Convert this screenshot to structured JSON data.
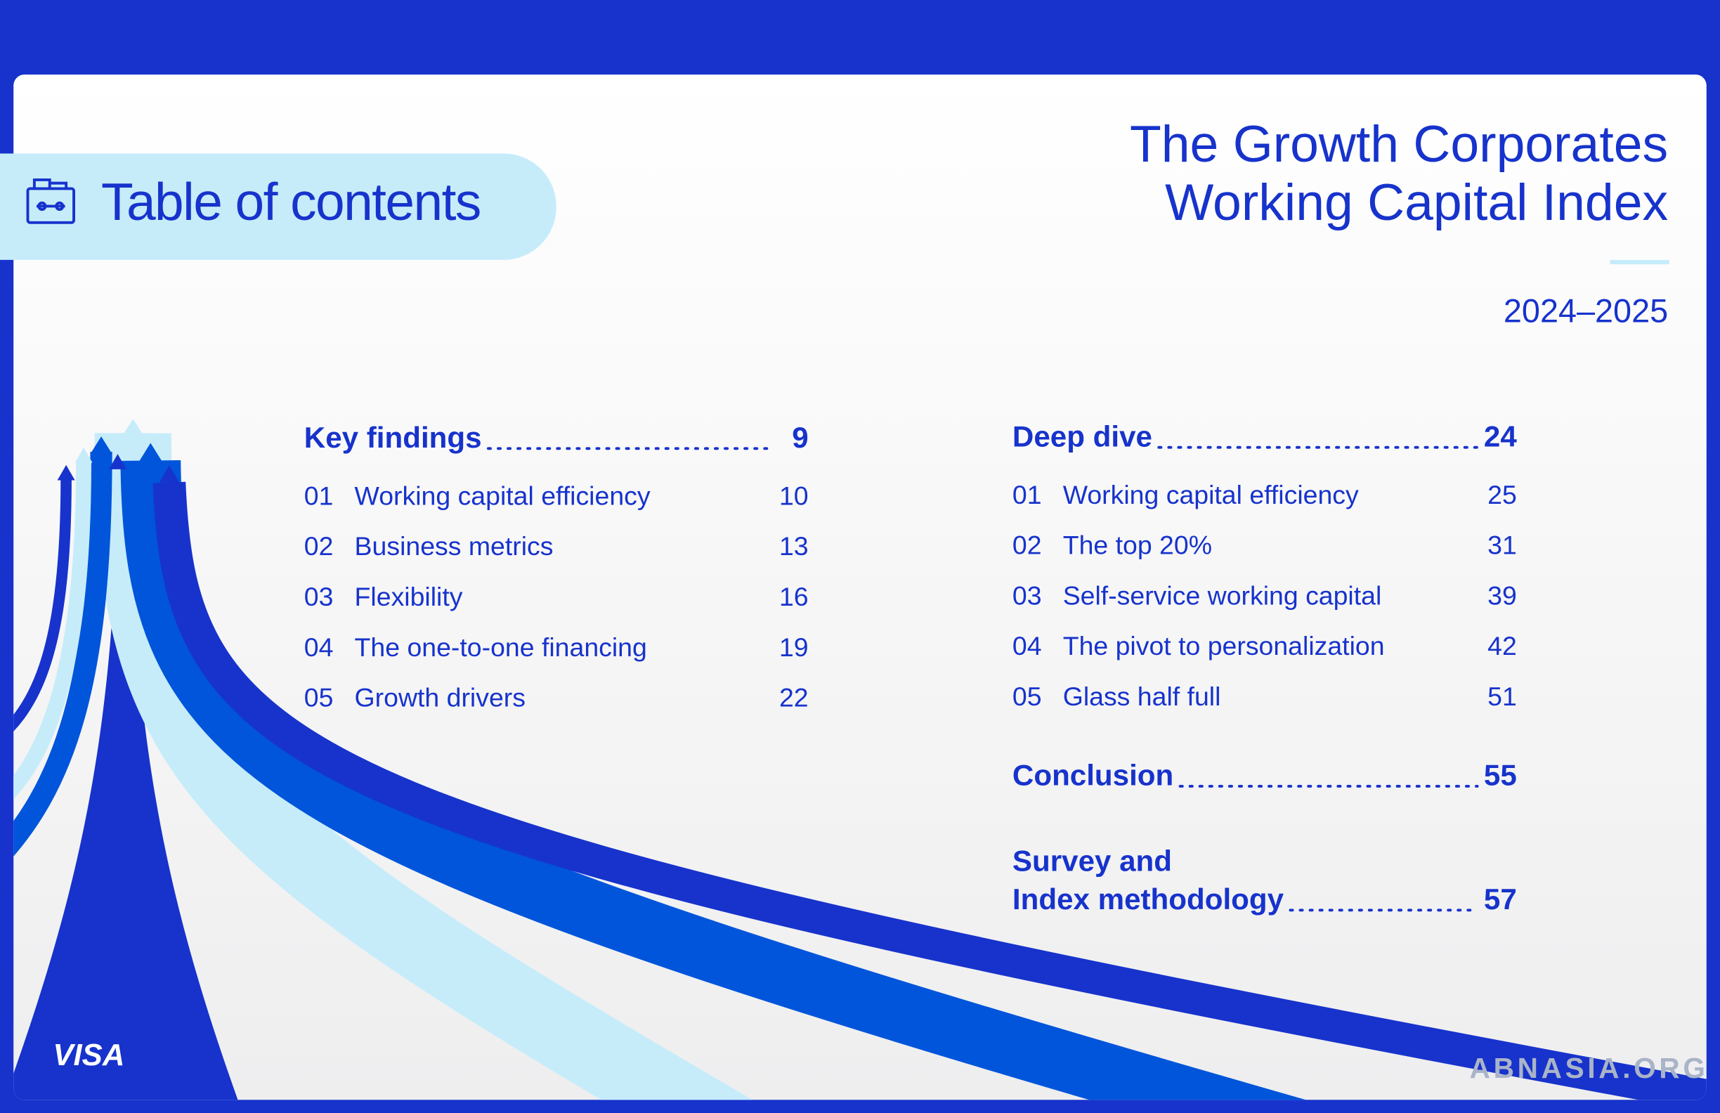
{
  "header": {
    "toc_label": "Table of contents",
    "title_line1": "The  Growth Corporates",
    "title_line2": "Working Capital Index",
    "years": "2024–2025"
  },
  "key_findings": {
    "title": "Key findings",
    "page": 9,
    "items": [
      {
        "num": "01",
        "label": "Working capital efficiency",
        "page": 10
      },
      {
        "num": "02",
        "label": "Business metrics",
        "page": 13
      },
      {
        "num": "03",
        "label": "Flexibility",
        "page": 16
      },
      {
        "num": "04",
        "label": "The one-to-one financing",
        "page": 19
      },
      {
        "num": "05",
        "label": "Growth drivers",
        "page": 22
      }
    ]
  },
  "deep_dive": {
    "title": "Deep dive",
    "page": 24,
    "items": [
      {
        "num": "01",
        "label": "Working capital efficiency",
        "page": 25
      },
      {
        "num": "02",
        "label": "The top 20%",
        "page": 31
      },
      {
        "num": "03",
        "label": "Self-service working capital",
        "page": 39
      },
      {
        "num": "04",
        "label": "The pivot to personalization",
        "page": 42
      },
      {
        "num": "05",
        "label": "Glass half full",
        "page": 51
      }
    ]
  },
  "conclusion": {
    "title": "Conclusion",
    "page": 55
  },
  "methodology": {
    "title_line1": "Survey and",
    "title_line2": "Index methodology",
    "page": 57
  },
  "footer": {
    "logo": "VISA",
    "watermark": "ABNASIA.ORG"
  }
}
